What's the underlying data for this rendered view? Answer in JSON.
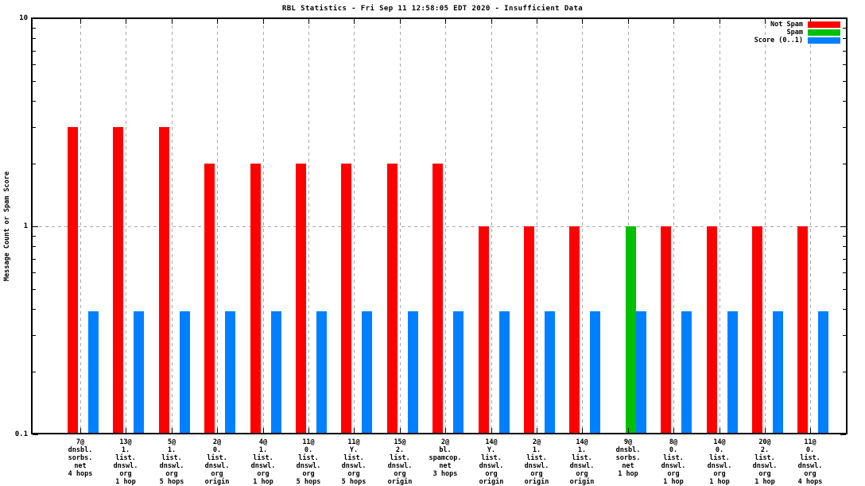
{
  "chart_data": {
    "type": "bar",
    "title": "RBL Statistics - Fri Sep 11 12:58:05 EDT 2020 - Insufficient Data",
    "ylabel": "Message Count or Spam Score",
    "xlabel": "",
    "y_scale": "log",
    "ylim": [
      0.1,
      10
    ],
    "y_ticks": [
      0.1,
      1,
      10
    ],
    "y_tick_labels": [
      "0.1",
      "1",
      "10"
    ],
    "grid": {
      "vertical_dashed_at_each_category": true,
      "horizontal_dashed_at": 1
    },
    "legend": {
      "position": "top-right-inside",
      "entries": [
        {
          "label": "Not Spam",
          "color": "#ff0000"
        },
        {
          "label": "Spam",
          "color": "#00c000"
        },
        {
          "label": "Score (0..1)",
          "color": "#0080ff"
        }
      ]
    },
    "categories": [
      [
        "7@",
        "dnsbl.",
        "sorbs.",
        "net",
        "4 hops"
      ],
      [
        "13@",
        "1.",
        "list.",
        "dnswl.",
        "org",
        "1 hop"
      ],
      [
        "5@",
        "1.",
        "list.",
        "dnswl.",
        "org",
        "5 hops"
      ],
      [
        "2@",
        "0.",
        "list.",
        "dnswl.",
        "org",
        "origin"
      ],
      [
        "4@",
        "1.",
        "list.",
        "dnswl.",
        "org",
        "1 hop"
      ],
      [
        "11@",
        "0.",
        "list.",
        "dnswl.",
        "org",
        "5 hops"
      ],
      [
        "11@",
        "Y.",
        "list.",
        "dnswl.",
        "org",
        "5 hops"
      ],
      [
        "15@",
        "2.",
        "list.",
        "dnswl.",
        "org",
        "origin"
      ],
      [
        "2@",
        "bl.",
        "spamcop.",
        "net",
        "3 hops"
      ],
      [
        "14@",
        "Y.",
        "list.",
        "dnswl.",
        "org",
        "origin"
      ],
      [
        "2@",
        "1.",
        "list.",
        "dnswl.",
        "org",
        "origin"
      ],
      [
        "14@",
        "1.",
        "list.",
        "dnswl.",
        "org",
        "origin"
      ],
      [
        "9@",
        "dnsbl.",
        "sorbs.",
        "net",
        "1 hop"
      ],
      [
        "8@",
        "0.",
        "list.",
        "dnswl.",
        "org",
        "1 hop"
      ],
      [
        "14@",
        "0.",
        "list.",
        "dnswl.",
        "org",
        "1 hop"
      ],
      [
        "20@",
        "2.",
        "list.",
        "dnswl.",
        "org",
        "1 hop"
      ],
      [
        "11@",
        "0.",
        "list.",
        "dnswl.",
        "org",
        "4 hops"
      ]
    ],
    "series": [
      {
        "name": "Not Spam",
        "color": "#ff0000",
        "values": [
          3,
          3,
          3,
          2,
          2,
          2,
          2,
          2,
          2,
          1,
          1,
          1,
          0,
          1,
          1,
          1,
          1
        ]
      },
      {
        "name": "Spam",
        "color": "#00c000",
        "values": [
          0,
          0,
          0,
          0,
          0,
          0,
          0,
          0,
          0,
          0,
          0,
          0,
          1,
          0,
          0,
          0,
          0
        ]
      },
      {
        "name": "Score (0..1)",
        "color": "#0080ff",
        "values": [
          0.39,
          0.39,
          0.39,
          0.39,
          0.39,
          0.39,
          0.39,
          0.39,
          0.39,
          0.39,
          0.39,
          0.39,
          0.39,
          0.39,
          0.39,
          0.39,
          0.39
        ]
      }
    ]
  }
}
